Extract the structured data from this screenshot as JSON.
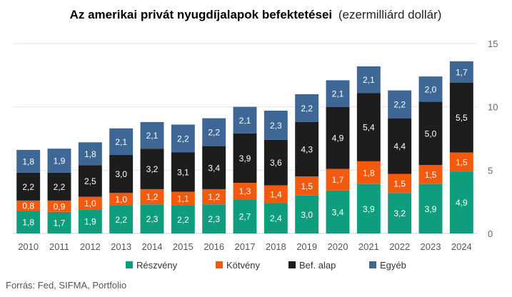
{
  "chart_data": {
    "type": "bar",
    "stacked": true,
    "title": "Az amerikai privát nyugdíjalapok befektetései",
    "subtitle": "(ezermilliárd dollár)",
    "categories": [
      "2010",
      "2011",
      "2012",
      "2013",
      "2014",
      "2015",
      "2016",
      "2017",
      "2018",
      "2019",
      "2020",
      "2021",
      "2022",
      "2023",
      "2024"
    ],
    "series": [
      {
        "name": "Részvény",
        "color": "#0f9e7d",
        "values": [
          1.8,
          1.7,
          1.9,
          2.2,
          2.3,
          2.2,
          2.3,
          2.7,
          2.4,
          3.0,
          3.4,
          3.9,
          3.2,
          3.9,
          4.9
        ],
        "labels": [
          "1,8",
          "1,7",
          "1,9",
          "2,2",
          "2,3",
          "2,2",
          "2,3",
          "2,7",
          "2,4",
          "3,0",
          "3,4",
          "3,9",
          "3,2",
          "3,9",
          "4,9"
        ]
      },
      {
        "name": "Kötvény",
        "color": "#f25a0f",
        "values": [
          0.8,
          0.9,
          1.0,
          1.0,
          1.2,
          1.1,
          1.2,
          1.3,
          1.4,
          1.5,
          1.7,
          1.8,
          1.5,
          1.5,
          1.5
        ],
        "labels": [
          "0,8",
          "0,9",
          "1,0",
          "1,0",
          "1,2",
          "1,1",
          "1,2",
          "1,3",
          "1,4",
          "1,5",
          "1,7",
          "1,8",
          "1,5",
          "1,5",
          "1,5"
        ]
      },
      {
        "name": "Bef. alap",
        "color": "#1d1d1d",
        "values": [
          2.2,
          2.2,
          2.5,
          3.0,
          3.2,
          3.1,
          3.4,
          3.9,
          3.6,
          4.3,
          4.9,
          5.4,
          4.4,
          5.0,
          5.5
        ],
        "labels": [
          "2,2",
          "2,2",
          "2,5",
          "3,0",
          "3,2",
          "3,1",
          "3,4",
          "3,9",
          "3,6",
          "4,3",
          "4,9",
          "5,4",
          "4,4",
          "5,0",
          "5,5"
        ]
      },
      {
        "name": "Egyéb",
        "color": "#3e6796",
        "values": [
          1.8,
          1.9,
          1.8,
          2.1,
          2.1,
          2.2,
          2.2,
          2.1,
          2.3,
          2.2,
          2.1,
          2.1,
          2.2,
          2.0,
          1.7
        ],
        "labels": [
          "1,8",
          "1,9",
          "1,8",
          "2,1",
          "2,1",
          "2,2",
          "2,2",
          "2,1",
          "2,3",
          "2,2",
          "2,1",
          "2,1",
          "2,2",
          "2,0",
          "1,7"
        ]
      }
    ],
    "ylim": [
      0,
      15
    ],
    "yticks": [
      0,
      5,
      10,
      15
    ],
    "y_axis_side": "right",
    "grid": true,
    "legend": "bottom"
  },
  "source": "Forrás: Fed, SIFMA, Portfolio"
}
